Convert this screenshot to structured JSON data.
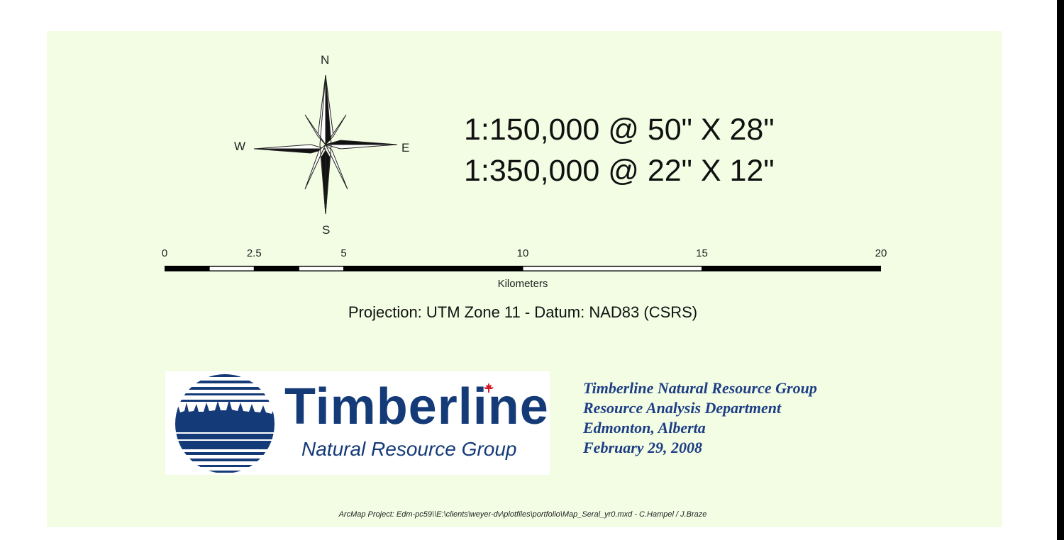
{
  "compass": {
    "north": "N",
    "south": "S",
    "east": "E",
    "west": "W"
  },
  "scale_text": [
    "1:150,000 @ 50\" X 28\"",
    "1:350,000 @ 22\" X 12\""
  ],
  "scalebar": {
    "ticks": [
      "0",
      "2.5",
      "5",
      "10",
      "15",
      "20"
    ],
    "tick_values": [
      0,
      2.5,
      5,
      10,
      15,
      20
    ],
    "max_km": 20,
    "unit_label": "Kilometers"
  },
  "projection": "Projection: UTM Zone 11  -  Datum: NAD83 (CSRS)",
  "logo": {
    "title": "Timberline",
    "subtitle": "Natural Resource Group"
  },
  "organization": {
    "line1": "Timberline Natural Resource Group",
    "line2": "Resource Analysis Department",
    "line3": "Edmonton, Alberta",
    "line4": "February 29, 2008"
  },
  "footer": "ArcMap Project: Edm-pc59\\\\E:\\clients\\weyer-dv\\plotfiles\\portfolio\\Map_Seral_yr0.mxd - C.Hampel / J.Braze",
  "colors": {
    "panel_bg": "#f3fde4",
    "logo_blue": "#143a78",
    "text_blue": "#1d3d85"
  }
}
